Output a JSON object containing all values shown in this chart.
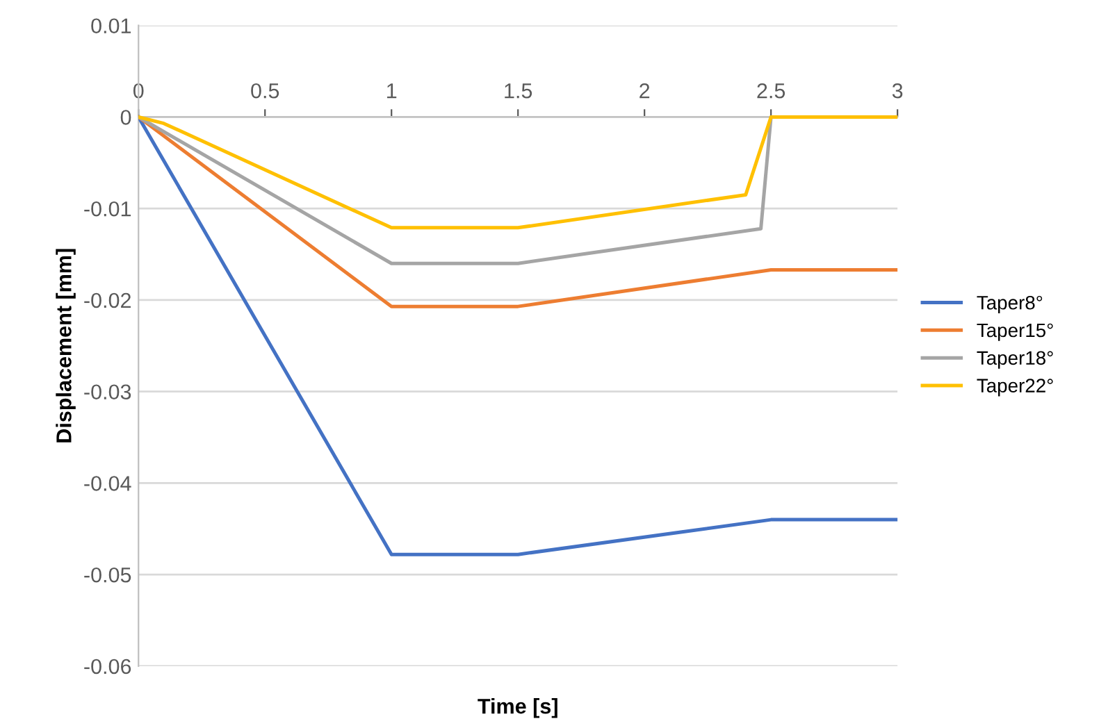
{
  "chart_data": {
    "type": "line",
    "xlabel": "Time [s]",
    "ylabel": "Displacement [mm]",
    "xlim": [
      0,
      3
    ],
    "xticks": [
      0,
      0.5,
      1,
      1.5,
      2,
      2.5,
      3
    ],
    "ylim": [
      -0.06,
      0.01
    ],
    "yticks": [
      -0.06,
      -0.05,
      -0.04,
      -0.03,
      -0.02,
      -0.01,
      0,
      0.01
    ],
    "grid": "y",
    "legend": "right",
    "marker": "none",
    "line_style": "solid",
    "series": [
      {
        "name": "Taper8°",
        "color": "#4472c4",
        "x": [
          0,
          1,
          1.5,
          2.5,
          3
        ],
        "values": [
          0,
          -0.0478,
          -0.0478,
          -0.044,
          -0.044
        ]
      },
      {
        "name": "Taper15°",
        "color": "#ed7d31",
        "x": [
          0,
          1,
          1.5,
          2.5,
          3
        ],
        "values": [
          0,
          -0.0207,
          -0.0207,
          -0.0167,
          -0.0167
        ]
      },
      {
        "name": "Taper18°",
        "color": "#a5a5a5",
        "x": [
          0,
          1,
          1.5,
          2.46,
          2.5,
          3
        ],
        "values": [
          0,
          -0.016,
          -0.016,
          -0.0122,
          0,
          0
        ]
      },
      {
        "name": "Taper22°",
        "color": "#ffc000",
        "x": [
          0,
          0.1,
          1,
          1.5,
          2.4,
          2.5,
          3
        ],
        "values": [
          0,
          -0.0007,
          -0.0121,
          -0.0121,
          -0.0085,
          0,
          0
        ]
      }
    ]
  }
}
